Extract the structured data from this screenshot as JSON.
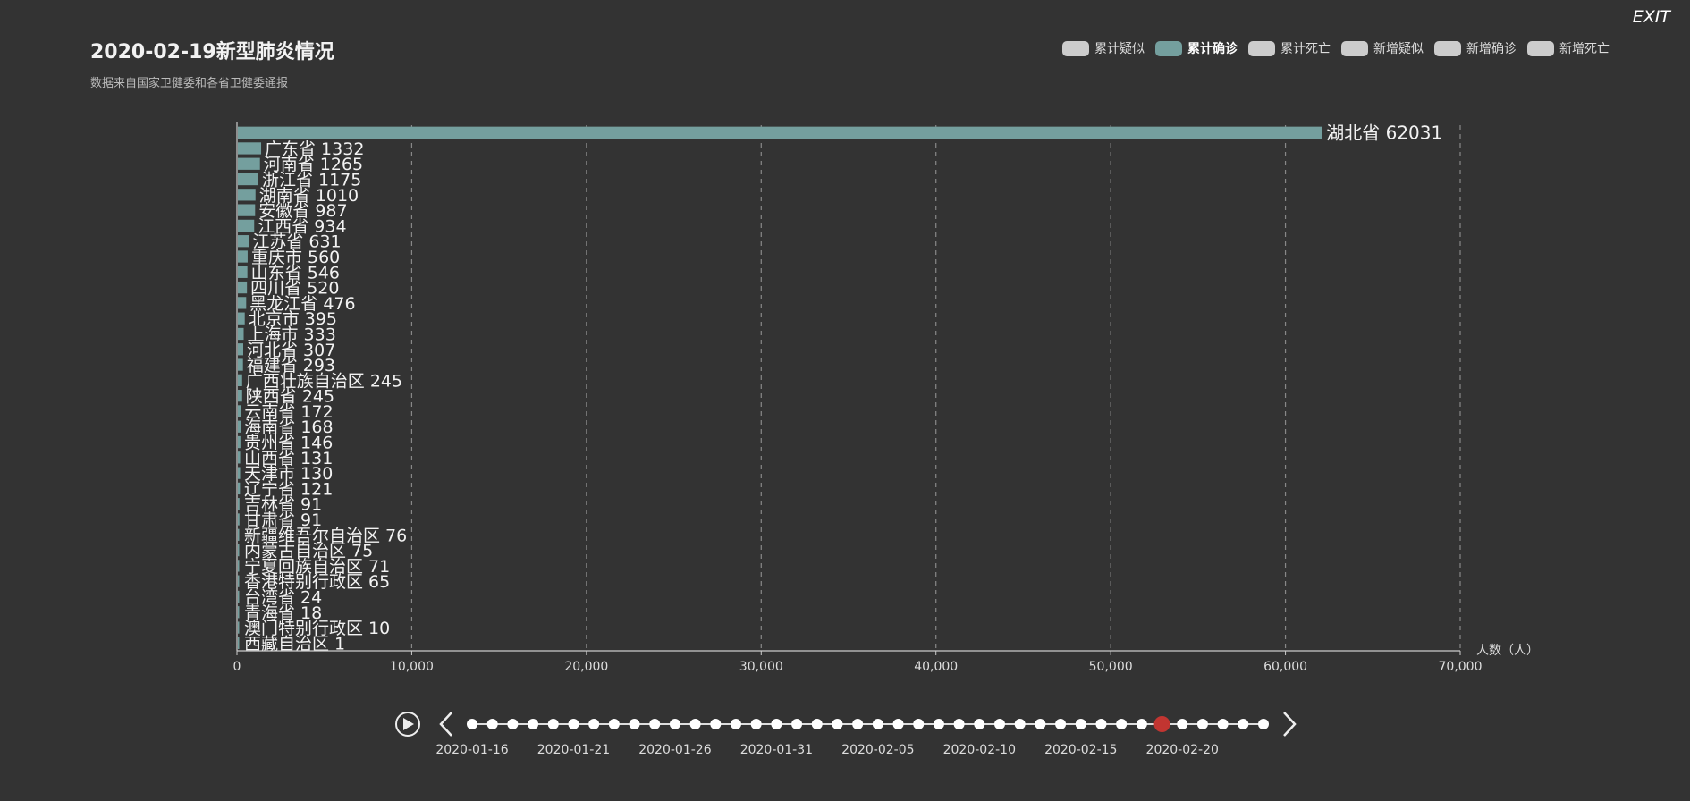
{
  "exit_label": "EXIT",
  "title": "2020-02-19新型肺炎情况",
  "subtitle": "数据来自国家卫健委和各省卫健委通报",
  "legend": [
    {
      "label": "累计疑似",
      "active": false
    },
    {
      "label": "累计确诊",
      "active": true
    },
    {
      "label": "累计死亡",
      "active": false
    },
    {
      "label": "新增疑似",
      "active": false
    },
    {
      "label": "新增确诊",
      "active": false
    },
    {
      "label": "新增死亡",
      "active": false
    }
  ],
  "colors": {
    "background": "#333333",
    "bar": "#749f9e",
    "legend_inactive": "#cccccc",
    "timeline_current": "#c23531"
  },
  "chart_data": {
    "type": "bar",
    "orientation": "horizontal",
    "x_axis_name": "人数（人）",
    "xlim": [
      0,
      70000
    ],
    "x_ticks": [
      "0",
      "10,000",
      "20,000",
      "30,000",
      "40,000",
      "50,000",
      "60,000",
      "70,000"
    ],
    "grid": "vertical dashed",
    "categories": [
      "湖北省",
      "广东省",
      "河南省",
      "浙江省",
      "湖南省",
      "安徽省",
      "江西省",
      "江苏省",
      "重庆市",
      "山东省",
      "四川省",
      "黑龙江省",
      "北京市",
      "上海市",
      "河北省",
      "福建省",
      "广西壮族自治区",
      "陕西省",
      "云南省",
      "海南省",
      "贵州省",
      "山西省",
      "天津市",
      "辽宁省",
      "吉林省",
      "甘肃省",
      "新疆维吾尔自治区",
      "内蒙古自治区",
      "宁夏回族自治区",
      "香港特别行政区",
      "台湾省",
      "青海省",
      "澳门特别行政区",
      "西藏自治区"
    ],
    "values": [
      62031,
      1332,
      1265,
      1175,
      1010,
      987,
      934,
      631,
      560,
      546,
      520,
      476,
      395,
      333,
      307,
      293,
      245,
      245,
      172,
      168,
      146,
      131,
      130,
      121,
      91,
      91,
      76,
      75,
      71,
      65,
      24,
      18,
      10,
      1
    ],
    "labels": [
      "湖北省 62031",
      "广东省 1332",
      "河南省 1265",
      "浙江省 1175",
      "湖南省 1010",
      "安徽省 987",
      "江西省 934",
      "江苏省 631",
      "重庆市 560",
      "山东省 546",
      "四川省 520",
      "黑龙江省 476",
      "北京市 395",
      "上海市 333",
      "河北省 307",
      "福建省 293",
      "广西壮族自治区 245",
      "陕西省 245",
      "云南省 172",
      "海南省 168",
      "贵州省 146",
      "山西省 131",
      "天津市 130",
      "辽宁省 121",
      "吉林省 91",
      "甘肃省 91",
      "新疆维吾尔自治区 76",
      "内蒙古自治区 75",
      "宁夏回族自治区 71",
      "香港特别行政区 65",
      "台湾省 24",
      "青海省 18",
      "澳门特别行政区 10",
      "西藏自治区 1"
    ]
  },
  "timeline": {
    "total_points": 40,
    "current_index": 34,
    "labels": [
      "2020-01-16",
      "2020-01-21",
      "2020-01-26",
      "2020-01-31",
      "2020-02-05",
      "2020-02-10",
      "2020-02-15",
      "2020-02-20"
    ]
  }
}
